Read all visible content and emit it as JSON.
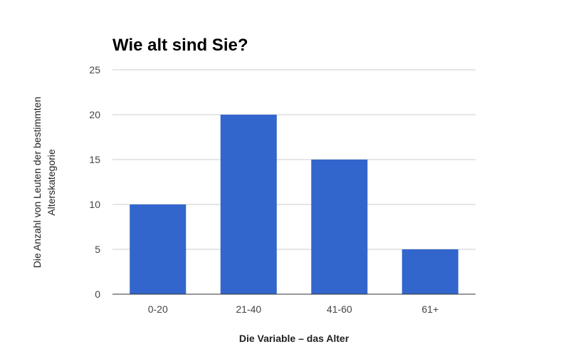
{
  "chart_data": {
    "type": "bar",
    "title": "Wie alt sind Sie?",
    "xlabel": "Die Variable – das Alter",
    "ylabel_lines": [
      "Die Anzahl von Leuten der bestimmten",
      "Alterskategorie"
    ],
    "categories": [
      "0-20",
      "21-40",
      "41-60",
      "61+"
    ],
    "values": [
      10,
      20,
      15,
      5
    ],
    "ylim": [
      0,
      25
    ],
    "yticks": [
      "0",
      "5",
      "10",
      "15",
      "20",
      "25"
    ],
    "grid": true,
    "legend": "none",
    "bar_color": "#3366cc",
    "grid_color": "#cccccc",
    "axis_color": "#333333"
  }
}
